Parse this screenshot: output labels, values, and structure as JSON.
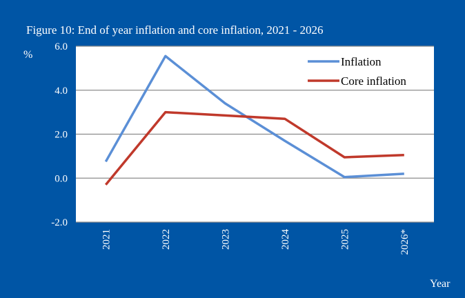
{
  "colors": {
    "background": "#0055a5",
    "plot_area": "#ffffff",
    "gridline": "#8c8c8c",
    "inflation": "#5b8fd6",
    "core_inflation": "#c0392b"
  },
  "chart_data": {
    "type": "line",
    "title": "Figure 10: End of year inflation  and core inflation, 2021 - 2026",
    "ylabel": "%",
    "xlabel": "Year",
    "categories": [
      "2021",
      "2022",
      "2023",
      "2024",
      "2025",
      "2026*"
    ],
    "y_ticks": [
      "6.0",
      "4.0",
      "2.0",
      "0.0",
      "-2.0"
    ],
    "ylim": [
      -2,
      6
    ],
    "grid": true,
    "legend_position": "top-right",
    "series": [
      {
        "name": "Inflation",
        "values": [
          0.75,
          5.55,
          3.4,
          1.7,
          0.05,
          0.2
        ]
      },
      {
        "name": "Core inflation",
        "values": [
          -0.3,
          3.0,
          2.85,
          2.7,
          0.95,
          1.05
        ]
      }
    ]
  }
}
